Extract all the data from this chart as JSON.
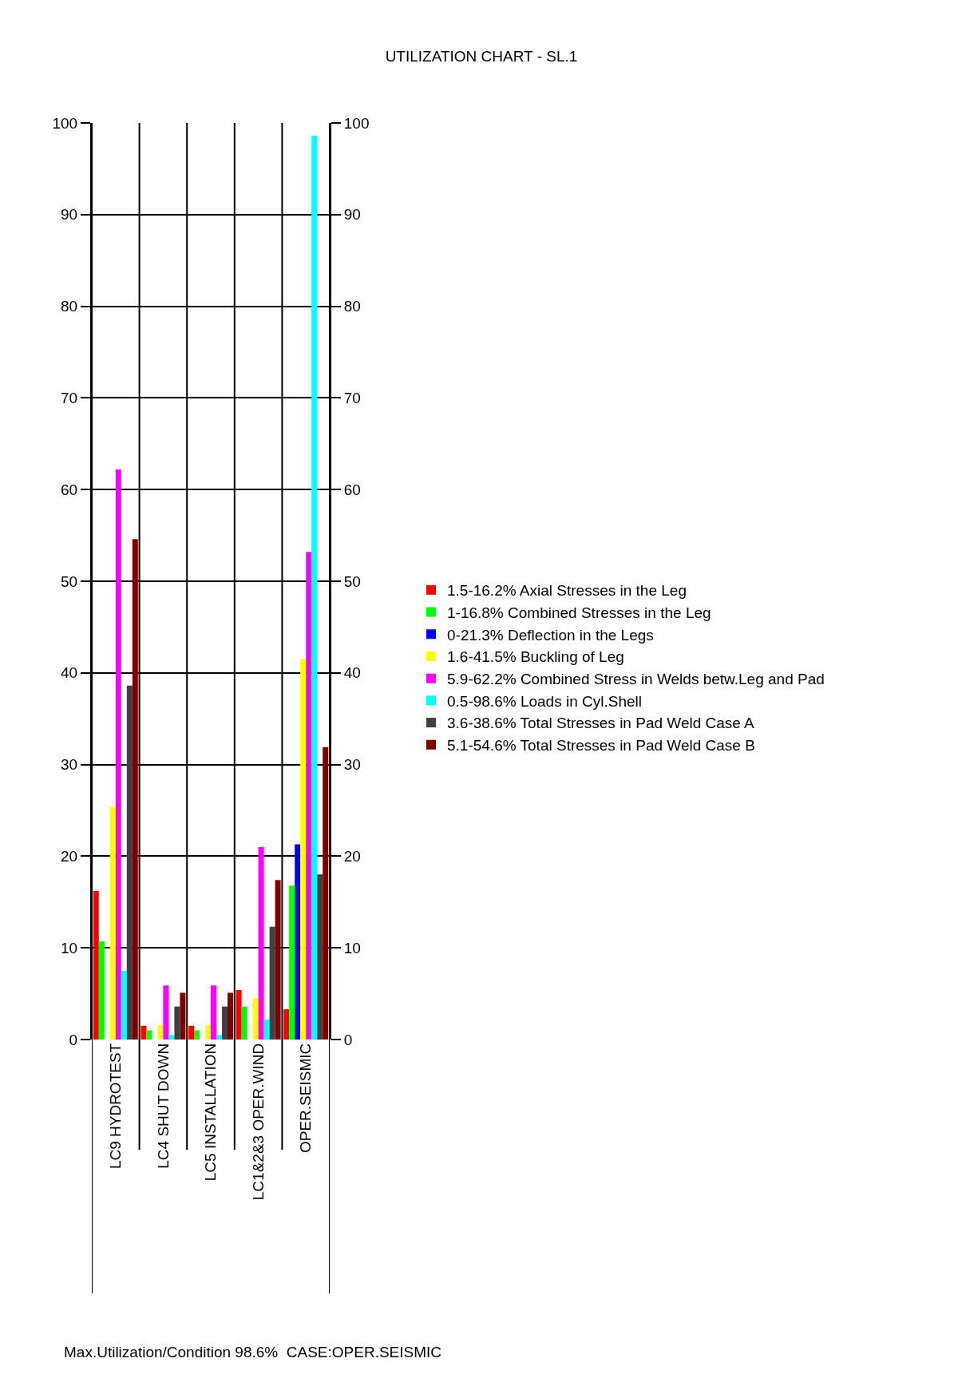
{
  "chart_data": {
    "type": "bar",
    "title": "UTILIZATION CHART - SL.1",
    "categories": [
      "LC9 HYDROTEST",
      "LC4 SHUT DOWN",
      "LC5 INSTALLATION",
      "LC1&2&3 OPER.WIND",
      "OPER.SEISMIC"
    ],
    "series": [
      {
        "name": "1.5-16.2% Axial Stresses in the Leg",
        "color": "#ff0000",
        "values": [
          16.2,
          1.5,
          1.5,
          5.4,
          3.3
        ]
      },
      {
        "name": "1-16.8% Combined Stresses in the Leg",
        "color": "#00ff00",
        "values": [
          10.7,
          1.0,
          1.0,
          3.6,
          16.8
        ]
      },
      {
        "name": "0-21.3% Deflection in the Legs",
        "color": "#0000ff",
        "values": [
          0,
          0,
          0,
          0,
          21.3
        ]
      },
      {
        "name": "1.6-41.5% Buckling of Leg",
        "color": "#ffff00",
        "values": [
          25.4,
          1.6,
          1.6,
          4.5,
          41.5
        ]
      },
      {
        "name": "5.9-62.2% Combined Stress in Welds betw.Leg and Pad",
        "color": "#ff00ff",
        "values": [
          62.2,
          5.9,
          5.9,
          21.0,
          53.2
        ]
      },
      {
        "name": "0.5-98.6% Loads in Cyl.Shell",
        "color": "#00ffff",
        "values": [
          7.5,
          0.5,
          0.5,
          2.2,
          98.6
        ]
      },
      {
        "name": "3.6-38.6% Total Stresses in Pad Weld Case A",
        "color": "#404040",
        "values": [
          38.6,
          3.6,
          3.6,
          12.3,
          18.0
        ]
      },
      {
        "name": "5.1-54.6% Total Stresses in Pad Weld Case B",
        "color": "#800000",
        "values": [
          54.6,
          5.1,
          5.1,
          17.4,
          31.9
        ]
      }
    ],
    "ylim": [
      0,
      100
    ],
    "yticks": [
      0,
      10,
      20,
      30,
      40,
      50,
      60,
      70,
      80,
      90,
      100
    ],
    "y2lim": [
      0,
      100
    ],
    "y2ticks": [
      0,
      10,
      20,
      30,
      40,
      50,
      60,
      70,
      80,
      90,
      100
    ],
    "grid": true,
    "legend": "right",
    "annotations": [
      "Max.Utilization/Condition 98.6%  CASE:OPER.SEISMIC"
    ]
  }
}
